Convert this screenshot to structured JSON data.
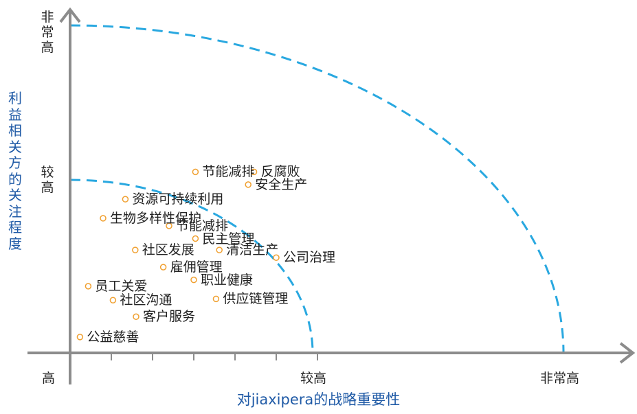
{
  "chart_data": {
    "type": "scatter",
    "xlabel": "对jiaxipera的战略重要性",
    "ylabel": "利益相关方的关注程度",
    "x_ticks": [
      "高",
      "较高",
      "非常高"
    ],
    "y_ticks": [
      "非常高",
      "较高"
    ],
    "xlim": [
      0,
      3
    ],
    "ylim": [
      0,
      3
    ],
    "thresholds": [
      1,
      2
    ],
    "colors": {
      "axis": "#8c8c8c",
      "curve": "#29a8e0",
      "marker": "#f0a030",
      "axis_title": "#1f5aa6"
    },
    "points": [
      {
        "label": "节能减排",
        "x": 1.52,
        "y": 2.85
      },
      {
        "label": "反腐败",
        "x": 2.23,
        "y": 2.85
      },
      {
        "label": "安全生产",
        "x": 2.16,
        "y": 2.65
      },
      {
        "label": "资源可持续利用",
        "x": 0.67,
        "y": 2.42
      },
      {
        "label": "生物多样性保护",
        "x": 0.4,
        "y": 2.12
      },
      {
        "label": "节能减排",
        "x": 1.2,
        "y": 2.0
      },
      {
        "label": "民主管理",
        "x": 1.52,
        "y": 1.8
      },
      {
        "label": "社区发展",
        "x": 0.79,
        "y": 1.62
      },
      {
        "label": "清洁生产",
        "x": 1.81,
        "y": 1.62
      },
      {
        "label": "公司治理",
        "x": 2.5,
        "y": 1.5
      },
      {
        "label": "雇佣管理",
        "x": 1.13,
        "y": 1.35
      },
      {
        "label": "职业健康",
        "x": 1.5,
        "y": 1.15
      },
      {
        "label": "员工关爱",
        "x": 0.22,
        "y": 1.05
      },
      {
        "label": "社区沟通",
        "x": 0.52,
        "y": 0.83
      },
      {
        "label": "供应链管理",
        "x": 1.77,
        "y": 0.85
      },
      {
        "label": "客户服务",
        "x": 0.8,
        "y": 0.57
      },
      {
        "label": "公益慈善",
        "x": 0.12,
        "y": 0.25
      }
    ]
  }
}
